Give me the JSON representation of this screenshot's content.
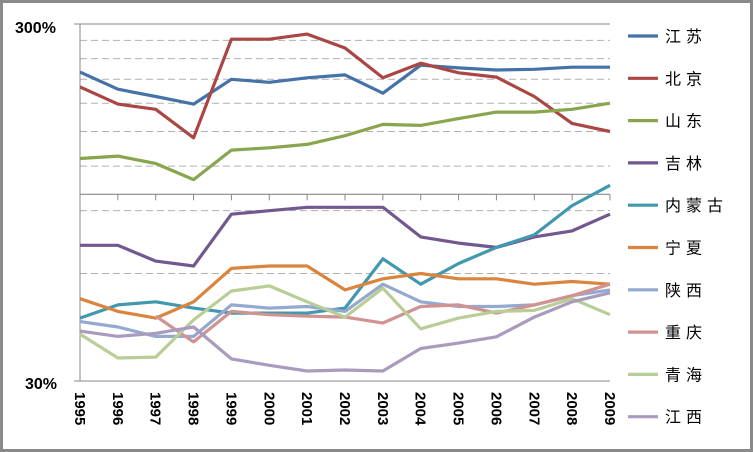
{
  "chart_data": {
    "type": "line",
    "title": "",
    "xlabel": "",
    "ylabel": "",
    "y_scale": "log",
    "ylim": [
      30,
      300
    ],
    "y_tick_labels": [
      "300%",
      "30%"
    ],
    "gridlines": [
      60,
      90,
      120,
      150,
      180,
      210,
      240,
      270
    ],
    "axis_cross": 100,
    "grid": true,
    "legend_position": "right",
    "categories": [
      "1995",
      "1996",
      "1997",
      "1998",
      "1999",
      "2000",
      "2001",
      "2002",
      "2003",
      "2004",
      "2005",
      "2006",
      "2007",
      "2008",
      "2009"
    ],
    "series": [
      {
        "name": "江苏",
        "color": "#4572A7",
        "values": [
          220,
          197,
          188,
          179,
          210,
          206,
          212,
          216,
          192,
          230,
          226,
          223,
          224,
          227,
          227
        ]
      },
      {
        "name": "北京",
        "color": "#AA4643",
        "values": [
          200,
          179,
          173,
          144,
          272,
          272,
          281,
          257,
          212,
          233,
          219,
          213,
          188,
          158,
          150
        ]
      },
      {
        "name": "山东",
        "color": "#89A54E",
        "values": [
          126,
          128,
          122,
          110,
          133,
          135,
          138,
          146,
          157,
          156,
          163,
          170,
          170,
          173,
          180
        ]
      },
      {
        "name": "吉林",
        "color": "#71588F",
        "values": [
          72,
          72,
          65,
          63,
          88,
          90,
          92,
          92,
          92,
          76,
          73,
          71,
          76,
          79,
          88
        ]
      },
      {
        "name": "内蒙古",
        "color": "#4198AF",
        "values": [
          45,
          49,
          50,
          48,
          46.5,
          46.5,
          46.5,
          48,
          66,
          56,
          64,
          71,
          77,
          93,
          106
        ]
      },
      {
        "name": "宁夏",
        "color": "#DB843D",
        "values": [
          51,
          47,
          45,
          50,
          62,
          63,
          63,
          54,
          58,
          60,
          58,
          58,
          56,
          57,
          56
        ]
      },
      {
        "name": "陕西",
        "color": "#93A9CF",
        "values": [
          44,
          42.5,
          40,
          40,
          49,
          48,
          48.5,
          47,
          56,
          50,
          48.5,
          48.5,
          49,
          52,
          54
        ]
      },
      {
        "name": "重庆",
        "color": "#D19392",
        "values": [
          null,
          null,
          45.6,
          38.6,
          47,
          46,
          45.6,
          45.3,
          43.6,
          48.5,
          49,
          46.5,
          49,
          52,
          56
        ]
      },
      {
        "name": "青海",
        "color": "#B9CD96",
        "values": [
          40.6,
          34.8,
          35,
          44.5,
          53.6,
          55.4,
          50,
          45.3,
          54.6,
          42,
          45,
          47,
          47.3,
          51,
          46
        ]
      },
      {
        "name": "江西",
        "color": "#A99BBD",
        "values": [
          41.4,
          40,
          40.8,
          42.5,
          34.6,
          33.2,
          32,
          32.2,
          32,
          37,
          38.3,
          39.9,
          45.3,
          50,
          53
        ]
      }
    ]
  }
}
